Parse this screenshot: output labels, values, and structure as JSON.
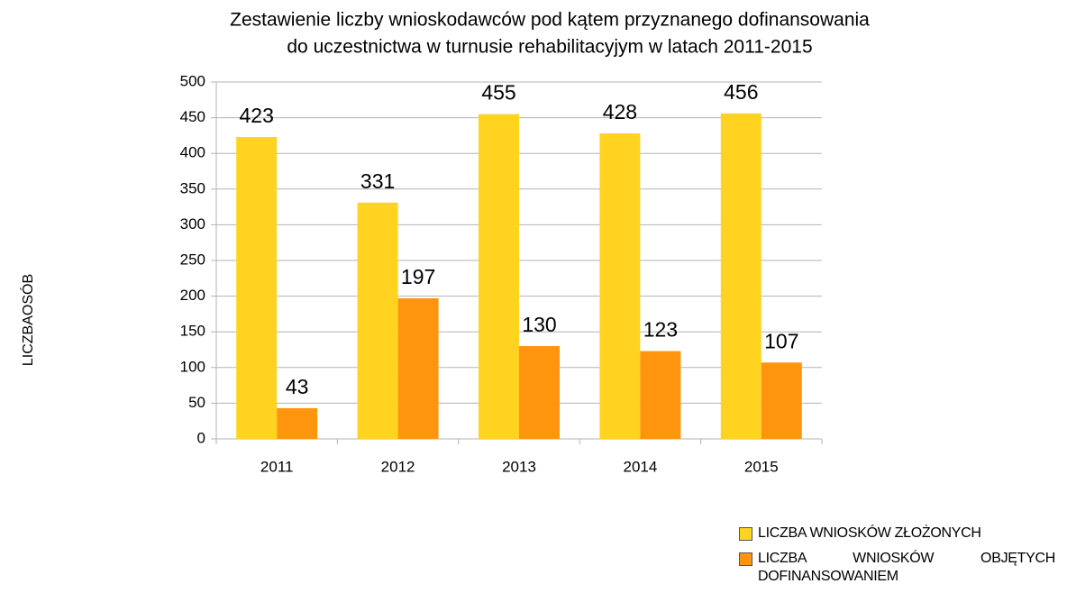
{
  "chart_data": {
    "type": "bar",
    "title": [
      "Zestawienie liczby wnioskodawców pod kątem przyznanego dofinansowania",
      "do uczestnictwa w turnusie rehabilitacyjym w latach 2011-2015"
    ],
    "ylabel": "LICZBAOSÓB",
    "categories": [
      "2011",
      "2012",
      "2013",
      "2014",
      "2015"
    ],
    "series": [
      {
        "name": "LICZBA WNIOSKÓW ZŁOŻONYCH",
        "color": "#ffd320",
        "values": [
          423,
          331,
          455,
          428,
          456
        ]
      },
      {
        "name": "LICZBA WNIOSKÓW OBJĘTYCH DOFINANSOWANIEM",
        "color": "#ff950e",
        "values": [
          43,
          197,
          130,
          123,
          107
        ]
      }
    ],
    "ylim": [
      0,
      500
    ],
    "yticks": [
      0,
      50,
      100,
      150,
      200,
      250,
      300,
      350,
      400,
      450,
      500
    ],
    "grid": true,
    "legend": "bottom-right"
  }
}
